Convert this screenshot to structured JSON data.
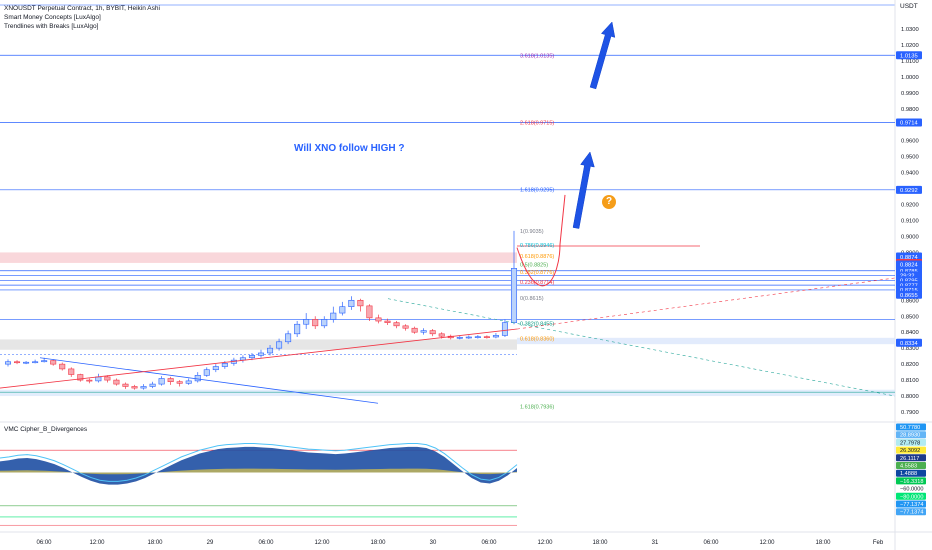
{
  "legend": {
    "symbol_line": "XNOUSDT Perpetual Contract, 1h, BYBIT, Heikin Ashi",
    "indicator_1": "Smart Money Concepts [LuxAlgo]",
    "indicator_2": "Trendlines with Breaks [LuxAlgo]"
  },
  "oscillator_title": "VMC Cipher_B_Divergences",
  "annotation_question": "Will XNO follow HIGH ?",
  "annotation_qmark": "?",
  "price_unit": "USDT",
  "chart_data": {
    "type": "candlestick",
    "title": "XNOUSDT Perpetual Contract, 1h, BYBIT, Heikin Ashi",
    "x_ticks": [
      "06:00",
      "12:00",
      "18:00",
      "29",
      "06:00",
      "12:00",
      "18:00",
      "30",
      "06:00",
      "12:00",
      "18:00",
      "31",
      "06:00",
      "12:00",
      "18:00",
      "Feb"
    ],
    "y_ticks": [
      "1.0300",
      "1.0200",
      "1.0100",
      "1.0000",
      "0.9900",
      "0.9800",
      "0.9700",
      "0.9600",
      "0.9500",
      "0.9400",
      "0.9300",
      "0.9200",
      "0.9100",
      "0.9000",
      "0.8900",
      "0.8800",
      "0.8700",
      "0.8600",
      "0.8500",
      "0.8400",
      "0.8300",
      "0.8200",
      "0.8100",
      "0.8000",
      "0.7900"
    ],
    "ylim": [
      0.785,
      1.045
    ],
    "price_tags": [
      {
        "label": "1.0135",
        "color": "#2962ff",
        "value": 1.0135
      },
      {
        "label": "0.9714",
        "color": "#2962ff",
        "value": 0.9714
      },
      {
        "label": "0.9292",
        "color": "#2962ff",
        "value": 0.9292
      },
      {
        "label": "0.8874",
        "color": "#2962ff",
        "value": 0.8874
      },
      {
        "label": "0.8834",
        "color": "#f23645",
        "value": 0.8834
      },
      {
        "label": "0.8824",
        "color": "#2962ff",
        "value": 0.8824
      },
      {
        "label": "0.8785",
        "color": "#2962ff",
        "value": 0.8785
      },
      {
        "label": "29:32",
        "color": "#2962ff",
        "value": 0.8755
      },
      {
        "label": "0.8795",
        "color": "#2962ff",
        "value": 0.8725
      },
      {
        "label": "0.8777",
        "color": "#2962ff",
        "value": 0.8695
      },
      {
        "label": "0.8715",
        "color": "#2962ff",
        "value": 0.8665
      },
      {
        "label": "0.8655",
        "color": "#2962ff",
        "value": 0.8635
      },
      {
        "label": "0.8334",
        "color": "#2962ff",
        "value": 0.8334
      }
    ],
    "fib_levels": [
      {
        "label": "3.618(1.0135)",
        "value": 1.0135,
        "color": "#9c27b0"
      },
      {
        "label": "2.618(0.9715)",
        "value": 0.9715,
        "color": "#f23645"
      },
      {
        "label": "1.618(0.9295)",
        "value": 0.9295,
        "color": "#2962ff"
      },
      {
        "label": "1(0.9035)",
        "value": 0.9035,
        "color": "#787b86"
      },
      {
        "label": "0.786(0.8946)",
        "value": 0.8946,
        "color": "#00bcd4"
      },
      {
        "label": "0.618(0.8876)",
        "value": 0.8876,
        "color": "#ff9800"
      },
      {
        "label": "0.5(0.8825)",
        "value": 0.8825,
        "color": "#4caf50"
      },
      {
        "label": "0.382(0.8776)",
        "value": 0.8776,
        "color": "#ff9800"
      },
      {
        "label": "0.236(0.8714)",
        "value": 0.8714,
        "color": "#f23645"
      },
      {
        "label": "0(0.8615)",
        "value": 0.8615,
        "color": "#787b86"
      },
      {
        "label": "0.382(0.8455)",
        "value": 0.8455,
        "color": "#089981"
      },
      {
        "label": "0.618(0.8360)",
        "value": 0.836,
        "color": "#ff9800"
      },
      {
        "label": "1.618(0.7936)",
        "value": 0.7936,
        "color": "#4caf50"
      }
    ],
    "candles": [
      {
        "o": 0.82,
        "c": 0.8215,
        "h": 0.823,
        "l": 0.8185
      },
      {
        "o": 0.8215,
        "c": 0.821,
        "h": 0.8225,
        "l": 0.82
      },
      {
        "o": 0.821,
        "c": 0.8212,
        "h": 0.822,
        "l": 0.82
      },
      {
        "o": 0.8212,
        "c": 0.8215,
        "h": 0.8228,
        "l": 0.8205
      },
      {
        "o": 0.8215,
        "c": 0.8222,
        "h": 0.824,
        "l": 0.821
      },
      {
        "o": 0.8222,
        "c": 0.82,
        "h": 0.823,
        "l": 0.819
      },
      {
        "o": 0.82,
        "c": 0.817,
        "h": 0.821,
        "l": 0.816
      },
      {
        "o": 0.817,
        "c": 0.8135,
        "h": 0.818,
        "l": 0.812
      },
      {
        "o": 0.8135,
        "c": 0.81,
        "h": 0.814,
        "l": 0.809
      },
      {
        "o": 0.81,
        "c": 0.8095,
        "h": 0.811,
        "l": 0.808
      },
      {
        "o": 0.8095,
        "c": 0.812,
        "h": 0.814,
        "l": 0.8085
      },
      {
        "o": 0.812,
        "c": 0.81,
        "h": 0.813,
        "l": 0.8085
      },
      {
        "o": 0.81,
        "c": 0.8075,
        "h": 0.811,
        "l": 0.8065
      },
      {
        "o": 0.8075,
        "c": 0.806,
        "h": 0.8085,
        "l": 0.8045
      },
      {
        "o": 0.806,
        "c": 0.805,
        "h": 0.807,
        "l": 0.804
      },
      {
        "o": 0.805,
        "c": 0.806,
        "h": 0.8075,
        "l": 0.804
      },
      {
        "o": 0.806,
        "c": 0.8075,
        "h": 0.809,
        "l": 0.805
      },
      {
        "o": 0.8075,
        "c": 0.811,
        "h": 0.8125,
        "l": 0.8065
      },
      {
        "o": 0.811,
        "c": 0.809,
        "h": 0.812,
        "l": 0.807
      },
      {
        "o": 0.809,
        "c": 0.808,
        "h": 0.81,
        "l": 0.806
      },
      {
        "o": 0.808,
        "c": 0.8095,
        "h": 0.811,
        "l": 0.807
      },
      {
        "o": 0.8095,
        "c": 0.813,
        "h": 0.815,
        "l": 0.8085
      },
      {
        "o": 0.813,
        "c": 0.8165,
        "h": 0.818,
        "l": 0.812
      },
      {
        "o": 0.8165,
        "c": 0.8185,
        "h": 0.82,
        "l": 0.815
      },
      {
        "o": 0.8185,
        "c": 0.8205,
        "h": 0.822,
        "l": 0.817
      },
      {
        "o": 0.8205,
        "c": 0.8225,
        "h": 0.824,
        "l": 0.819
      },
      {
        "o": 0.8225,
        "c": 0.824,
        "h": 0.8255,
        "l": 0.821
      },
      {
        "o": 0.824,
        "c": 0.8255,
        "h": 0.827,
        "l": 0.8225
      },
      {
        "o": 0.8255,
        "c": 0.827,
        "h": 0.829,
        "l": 0.824
      },
      {
        "o": 0.827,
        "c": 0.83,
        "h": 0.832,
        "l": 0.8255
      },
      {
        "o": 0.83,
        "c": 0.834,
        "h": 0.836,
        "l": 0.8285
      },
      {
        "o": 0.834,
        "c": 0.839,
        "h": 0.841,
        "l": 0.8325
      },
      {
        "o": 0.839,
        "c": 0.845,
        "h": 0.847,
        "l": 0.837
      },
      {
        "o": 0.845,
        "c": 0.848,
        "h": 0.852,
        "l": 0.842
      },
      {
        "o": 0.848,
        "c": 0.844,
        "h": 0.85,
        "l": 0.842
      },
      {
        "o": 0.844,
        "c": 0.848,
        "h": 0.85,
        "l": 0.8425
      },
      {
        "o": 0.848,
        "c": 0.852,
        "h": 0.856,
        "l": 0.846
      },
      {
        "o": 0.852,
        "c": 0.856,
        "h": 0.859,
        "l": 0.8505
      },
      {
        "o": 0.856,
        "c": 0.86,
        "h": 0.8625,
        "l": 0.854
      },
      {
        "o": 0.86,
        "c": 0.8565,
        "h": 0.861,
        "l": 0.853
      },
      {
        "o": 0.8565,
        "c": 0.849,
        "h": 0.8575,
        "l": 0.847
      },
      {
        "o": 0.849,
        "c": 0.847,
        "h": 0.851,
        "l": 0.8455
      },
      {
        "o": 0.847,
        "c": 0.846,
        "h": 0.8485,
        "l": 0.8445
      },
      {
        "o": 0.846,
        "c": 0.844,
        "h": 0.847,
        "l": 0.8425
      },
      {
        "o": 0.844,
        "c": 0.8425,
        "h": 0.845,
        "l": 0.841
      },
      {
        "o": 0.8425,
        "c": 0.84,
        "h": 0.8435,
        "l": 0.839
      },
      {
        "o": 0.84,
        "c": 0.841,
        "h": 0.8425,
        "l": 0.8385
      },
      {
        "o": 0.841,
        "c": 0.839,
        "h": 0.842,
        "l": 0.8375
      },
      {
        "o": 0.839,
        "c": 0.8375,
        "h": 0.84,
        "l": 0.836
      },
      {
        "o": 0.8375,
        "c": 0.8365,
        "h": 0.8385,
        "l": 0.8355
      },
      {
        "o": 0.8365,
        "c": 0.8368,
        "h": 0.8378,
        "l": 0.8355
      },
      {
        "o": 0.8368,
        "c": 0.837,
        "h": 0.838,
        "l": 0.8358
      },
      {
        "o": 0.837,
        "c": 0.8372,
        "h": 0.8382,
        "l": 0.836
      },
      {
        "o": 0.8372,
        "c": 0.837,
        "h": 0.838,
        "l": 0.836
      },
      {
        "o": 0.837,
        "c": 0.838,
        "h": 0.8395,
        "l": 0.8362
      },
      {
        "o": 0.838,
        "c": 0.846,
        "h": 0.848,
        "l": 0.837
      },
      {
        "o": 0.846,
        "c": 0.88,
        "h": 0.9035,
        "l": 0.845
      }
    ],
    "oscillator": {
      "ylim": [
        -100,
        80
      ],
      "tags": [
        {
          "label": "50.7780",
          "color": "#2196f3"
        },
        {
          "label": "28.8930",
          "color": "#64b5f6"
        },
        {
          "label": "27.7978",
          "color": "#b2ebf2"
        },
        {
          "label": "26.3092",
          "color": "#ffeb3b"
        },
        {
          "label": "26.1117",
          "color": "#1e3a8a"
        },
        {
          "label": "4.5583",
          "color": "#4caf50"
        },
        {
          "label": "1.4888",
          "color": "#0d47a1"
        },
        {
          "label": "−16.3318",
          "color": "#00c853"
        },
        {
          "label": "−60.0000",
          "color": "#ffffff"
        },
        {
          "label": "−80.0000",
          "color": "#00e676"
        },
        {
          "label": "−77.1374",
          "color": "#2196f3"
        },
        {
          "label": "−77.1374",
          "color": "#42a5f5"
        }
      ],
      "ticks": [
        "60.0000",
        "40.0000",
        "20.0000",
        "0.0000",
        "−20.0000",
        "−40.0000",
        "−60.0000"
      ],
      "wave": [
        20,
        22,
        25,
        26,
        24,
        20,
        15,
        8,
        0,
        -8,
        -15,
        -20,
        -22,
        -22,
        -20,
        -16,
        -10,
        -2,
        6,
        14,
        22,
        28,
        34,
        38,
        42,
        44,
        45,
        46,
        46,
        45,
        44,
        42,
        40,
        38,
        36,
        35,
        34,
        33,
        34,
        36,
        38,
        40,
        42,
        44,
        45,
        46,
        46,
        44,
        38,
        28,
        15,
        2,
        -10,
        -18,
        -20,
        -15,
        -5,
        8
      ]
    }
  }
}
